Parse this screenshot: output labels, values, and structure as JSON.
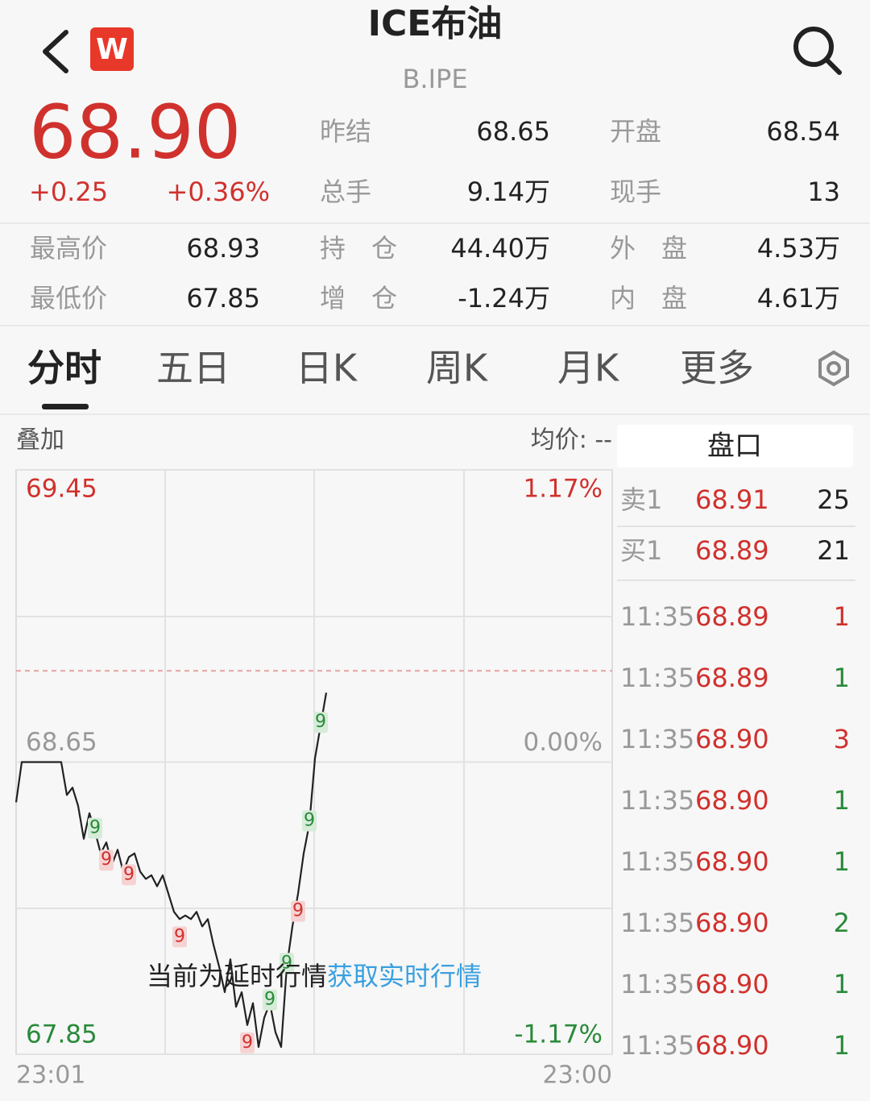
{
  "header": {
    "logo": "W",
    "title": "ICE布油",
    "code": "B.IPE"
  },
  "quote": {
    "price": "68.90",
    "change": "+0.25",
    "change_pct": "+0.36%"
  },
  "stats": [
    {
      "label": "昨结",
      "value": "68.65"
    },
    {
      "label": "开盘",
      "value": "68.54"
    },
    {
      "label": "总手",
      "value": "9.14万"
    },
    {
      "label": "现手",
      "value": "13"
    },
    {
      "label": "最高价",
      "value": "68.93"
    },
    {
      "label": "持　仓",
      "value": "44.40万"
    },
    {
      "label": "外　盘",
      "value": "4.53万"
    },
    {
      "label": "最低价",
      "value": "67.85"
    },
    {
      "label": "增　仓",
      "value": "-1.24万"
    },
    {
      "label": "内　盘",
      "value": "4.61万"
    }
  ],
  "tabs": [
    "分时",
    "五日",
    "日K",
    "周K",
    "月K",
    "更多"
  ],
  "toolbar": {
    "overlay": "叠加",
    "avg_price": "均价: --"
  },
  "chart_data": {
    "type": "line",
    "ylim": [
      67.85,
      69.45
    ],
    "yticks": [
      69.45,
      68.65,
      67.85
    ],
    "y2ticks": [
      {
        "value": 1.17,
        "label": "1.17%"
      },
      {
        "value": 0,
        "label": "0.00%"
      },
      {
        "value": -1.17,
        "label": "-1.17%"
      }
    ],
    "x_labels": [
      "23:01",
      "23:00"
    ],
    "current_price": 68.9,
    "color": "#222222",
    "values": [
      68.54,
      68.65,
      68.65,
      68.65,
      68.65,
      68.65,
      68.65,
      68.65,
      68.65,
      68.56,
      68.58,
      68.53,
      68.44,
      68.51,
      68.46,
      68.4,
      68.43,
      68.37,
      68.41,
      68.35,
      68.39,
      68.4,
      68.35,
      68.33,
      68.34,
      68.31,
      68.34,
      68.29,
      68.24,
      68.22,
      68.23,
      68.22,
      68.24,
      68.2,
      68.22,
      68.15,
      68.09,
      68.02,
      68.11,
      67.98,
      68.02,
      67.93,
      67.99,
      67.87,
      67.95,
      67.99,
      67.91,
      67.87,
      68.09,
      68.2,
      68.29,
      68.4,
      68.48,
      68.66,
      68.75,
      68.84
    ],
    "signals": [
      {
        "text": "9",
        "kind": "buy",
        "index": 14
      },
      {
        "text": "9",
        "kind": "sell",
        "index": 16
      },
      {
        "text": "9",
        "kind": "sell",
        "index": 20
      },
      {
        "text": "9",
        "kind": "sell",
        "index": 29
      },
      {
        "text": "9",
        "kind": "sell",
        "index": 41
      },
      {
        "text": "9",
        "kind": "buy",
        "index": 45
      },
      {
        "text": "9",
        "kind": "buy",
        "index": 48
      },
      {
        "text": "9",
        "kind": "sell",
        "index": 50
      },
      {
        "text": "9",
        "kind": "buy",
        "index": 52
      },
      {
        "text": "9",
        "kind": "buy",
        "index": 54
      }
    ]
  },
  "notice": {
    "text": "当前为延时行情",
    "link": "获取实时行情"
  },
  "order_book": {
    "title": "盘口",
    "levels": [
      {
        "side": "卖1",
        "price": "68.91",
        "volume": "25"
      },
      {
        "side": "买1",
        "price": "68.89",
        "volume": "21"
      }
    ],
    "trades": [
      {
        "time": "11:35",
        "price": "68.89",
        "volume": "1",
        "dir": "up"
      },
      {
        "time": "11:35",
        "price": "68.89",
        "volume": "1",
        "dir": "down"
      },
      {
        "time": "11:35",
        "price": "68.90",
        "volume": "3",
        "dir": "up"
      },
      {
        "time": "11:35",
        "price": "68.90",
        "volume": "1",
        "dir": "down"
      },
      {
        "time": "11:35",
        "price": "68.90",
        "volume": "1",
        "dir": "down"
      },
      {
        "time": "11:35",
        "price": "68.90",
        "volume": "2",
        "dir": "down"
      },
      {
        "time": "11:35",
        "price": "68.90",
        "volume": "1",
        "dir": "down"
      },
      {
        "time": "11:35",
        "price": "68.90",
        "volume": "1",
        "dir": "down"
      }
    ]
  }
}
